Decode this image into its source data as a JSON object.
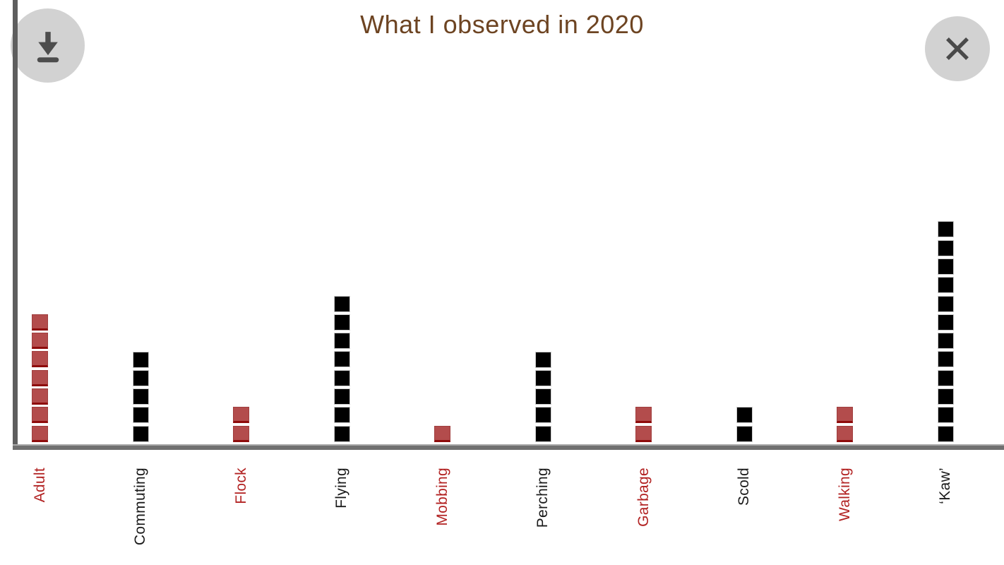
{
  "header": {
    "title": "What I observed in 2020"
  },
  "icons": {
    "top_left": "download-icon",
    "top_right": "close-icon"
  },
  "colors": {
    "title_text": "#6d4422",
    "red_fill": "#b34c4c",
    "red_edge": "#8e0b0b",
    "black_fill": "#000000",
    "black_edge": "#cbcbcb",
    "label_red": "#b22222",
    "label_black": "#1a1a1a",
    "axis_gray": "#707070",
    "button_bg": "#d2d2d2",
    "button_glyph": "#4d4d4d"
  },
  "chart_data": {
    "type": "bar",
    "style": "unit-pictograph (1 square = 1 observation)",
    "title": "What I observed in 2020",
    "categories": [
      "Adult",
      "Commuting",
      "Flock",
      "Flying",
      "Mobbing",
      "Perching",
      "Garbage",
      "Scold",
      "Walking",
      "‘Kaw’"
    ],
    "values": [
      7,
      5,
      2,
      8,
      1,
      5,
      2,
      2,
      2,
      12
    ],
    "series": [
      {
        "label": "Adult",
        "value": 7,
        "color_group": "red"
      },
      {
        "label": "Commuting",
        "value": 5,
        "color_group": "black"
      },
      {
        "label": "Flock",
        "value": 2,
        "color_group": "red"
      },
      {
        "label": "Flying",
        "value": 8,
        "color_group": "black"
      },
      {
        "label": "Mobbing",
        "value": 1,
        "color_group": "red"
      },
      {
        "label": "Perching",
        "value": 5,
        "color_group": "black"
      },
      {
        "label": "Garbage",
        "value": 2,
        "color_group": "red"
      },
      {
        "label": "Scold",
        "value": 2,
        "color_group": "black"
      },
      {
        "label": "Walking",
        "value": 2,
        "color_group": "red"
      },
      {
        "label": "‘Kaw’",
        "value": 12,
        "color_group": "black"
      }
    ],
    "xlabel": "",
    "ylabel": "",
    "ylim": [
      0,
      12
    ],
    "grid": false,
    "legend": false
  }
}
